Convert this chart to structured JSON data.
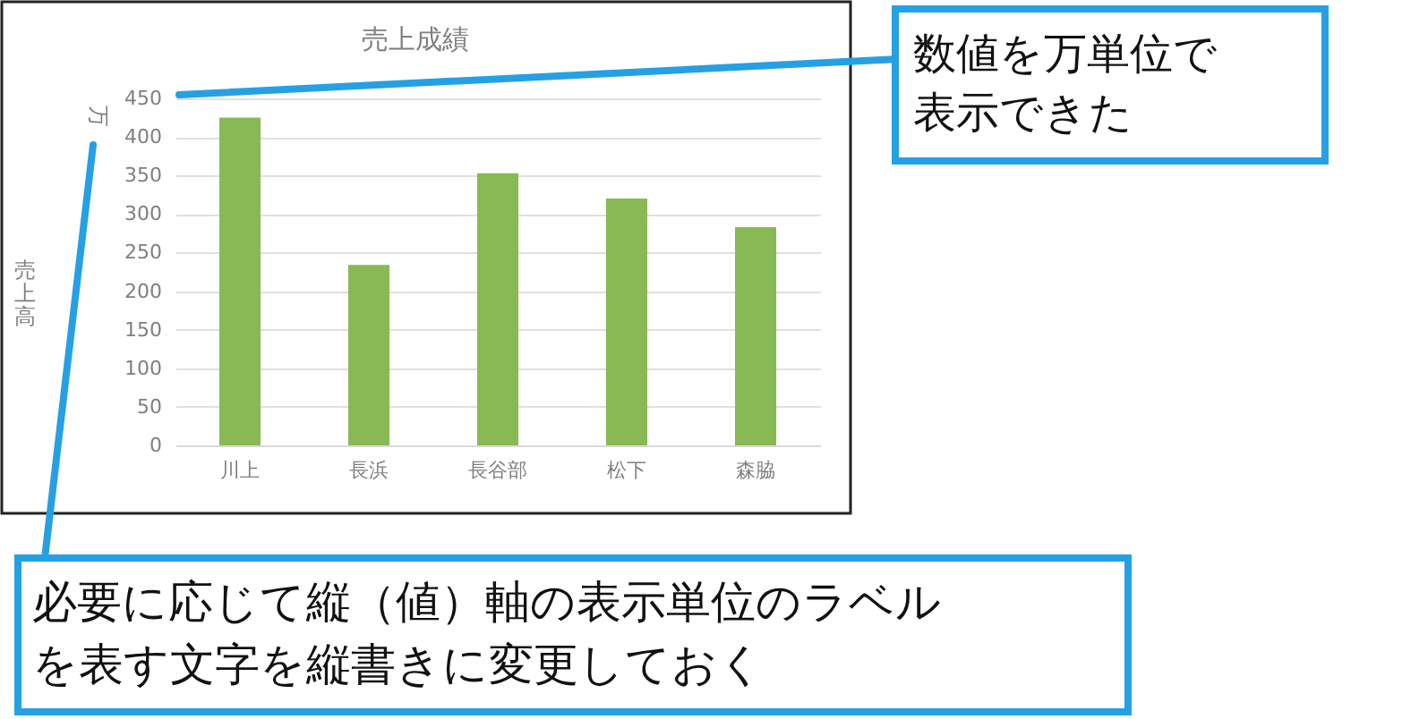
{
  "chart_data": {
    "type": "bar",
    "title": "売上成績",
    "ylabel": "売上高",
    "categories": [
      "川上",
      "長浜",
      "長谷部",
      "松下",
      "森脇"
    ],
    "values": [
      425,
      234,
      353,
      320,
      283
    ],
    "color": "#89b955",
    "ylim": [
      0,
      450
    ],
    "yticks": [
      0,
      50,
      100,
      150,
      200,
      250,
      300,
      350,
      400,
      450
    ],
    "grid": "y",
    "annotations": [
      "万",
      "数値を万単位で表示できた",
      "必要に応じて縦（値）軸の表示単位のラベルを表す文字を縦書きに変更しておく"
    ]
  }
}
